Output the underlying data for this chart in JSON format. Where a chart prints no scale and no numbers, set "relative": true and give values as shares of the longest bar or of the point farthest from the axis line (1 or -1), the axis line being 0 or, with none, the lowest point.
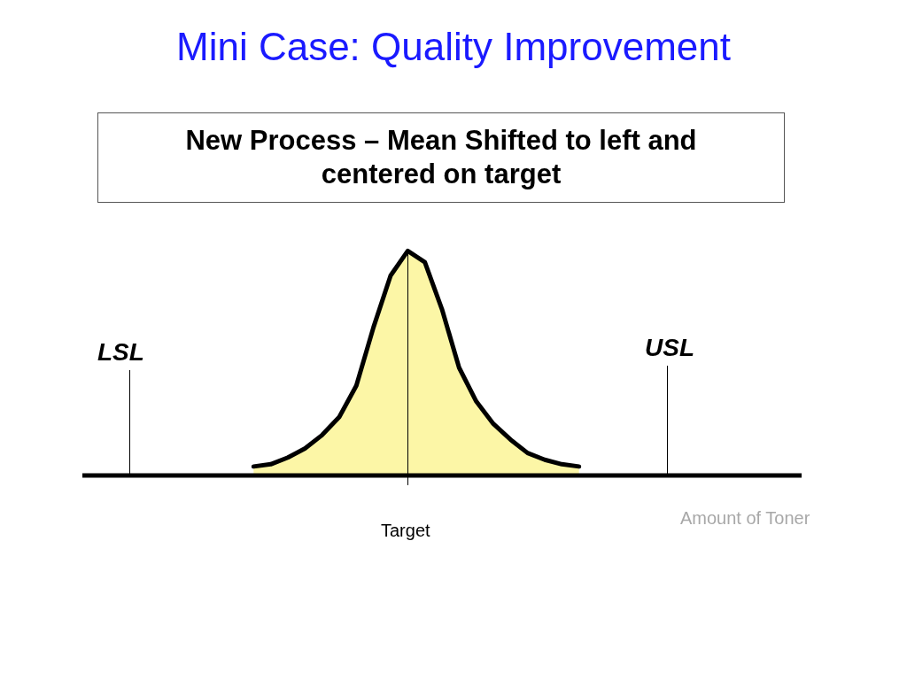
{
  "chart_data": {
    "type": "area",
    "title": "Mini Case: Quality Improvement",
    "subtitle": "New  Process – Mean Shifted to left and centered on target",
    "xlabel": "Amount of Toner",
    "relative": true,
    "categories": [
      null,
      null,
      null,
      null,
      null,
      null,
      null,
      null,
      null,
      null,
      null,
      null,
      null,
      null,
      null,
      null,
      null,
      null,
      null,
      null,
      null,
      null,
      null,
      null,
      null,
      null,
      null,
      null,
      null,
      null,
      null,
      null,
      null,
      null,
      null,
      null,
      null,
      null,
      null,
      null,
      null,
      null,
      null
    ],
    "series": [
      {
        "color": "#fcf6a6",
        "values": [
          null,
          null,
          null,
          null,
          null,
          null,
          null,
          null,
          null,
          null,
          0.04,
          0.05,
          0.08,
          0.12,
          0.18,
          0.26,
          0.4,
          0.66,
          0.89,
          1.0,
          0.95,
          0.74,
          0.48,
          0.33,
          0.23,
          0.16,
          0.1,
          0.07,
          0.05,
          0.04,
          null,
          null,
          null,
          null,
          null,
          null,
          null,
          null,
          null,
          null,
          null,
          null,
          null
        ]
      }
    ],
    "annotations": [
      "LSL",
      "USL",
      "Target"
    ]
  }
}
